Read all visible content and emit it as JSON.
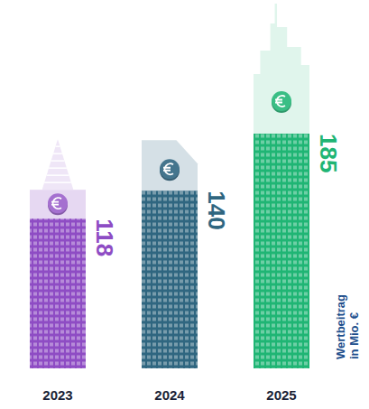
{
  "chart_data": {
    "type": "bar",
    "categories": [
      "2023",
      "2024",
      "2025"
    ],
    "values": [
      118,
      140,
      185
    ],
    "colors": [
      "#8e4cc4",
      "#2f6680",
      "#1fb574"
    ],
    "y_label": "Wertbeitrag in Mio. €",
    "ylim": [
      0,
      185
    ],
    "yticks": [],
    "tick_labels": false,
    "data_labels": true
  }
}
